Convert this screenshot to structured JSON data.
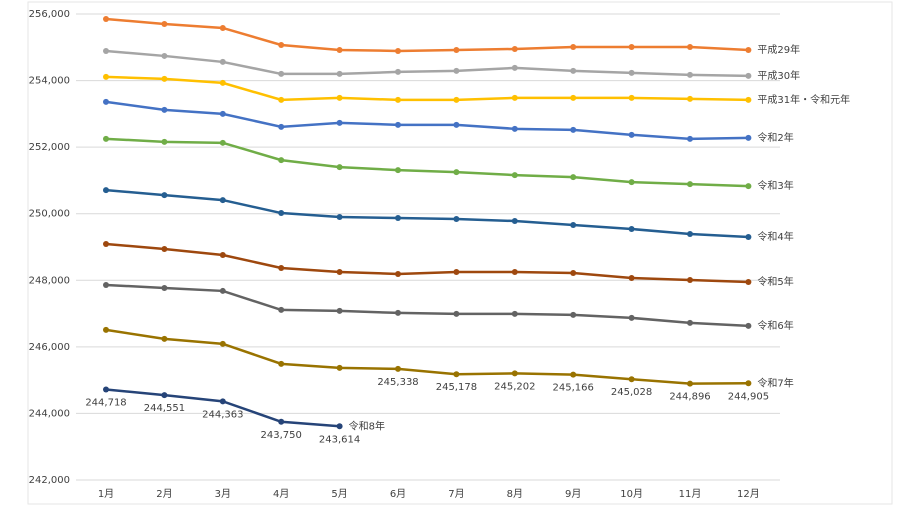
{
  "chart_data": {
    "type": "line",
    "categories": [
      "1月",
      "2月",
      "3月",
      "4月",
      "5月",
      "6月",
      "7月",
      "8月",
      "9月",
      "10月",
      "11月",
      "12月"
    ],
    "ylim": [
      242000,
      256000
    ],
    "yticks": [
      {
        "value": 242000,
        "label": "242,000"
      },
      {
        "value": 244000,
        "label": "244,000"
      },
      {
        "value": 246000,
        "label": "246,000"
      },
      {
        "value": 248000,
        "label": "248,000"
      },
      {
        "value": 250000,
        "label": "250,000"
      },
      {
        "value": 252000,
        "label": "252,000"
      },
      {
        "value": 254000,
        "label": "254,000"
      },
      {
        "value": 256000,
        "label": "256,000"
      }
    ],
    "grid": true,
    "series": [
      {
        "name": "平成29年",
        "color": "#ED7D31",
        "values": [
          255850,
          255700,
          255580,
          255070,
          254920,
          254890,
          254920,
          254950,
          255010,
          255010,
          255010,
          254920
        ]
      },
      {
        "name": "平成30年",
        "color": "#A5A5A5",
        "values": [
          254890,
          254740,
          254560,
          254200,
          254200,
          254260,
          254290,
          254380,
          254290,
          254230,
          254170,
          254140
        ]
      },
      {
        "name": "平成31年・令和元年",
        "color": "#FFC000",
        "values": [
          254110,
          254050,
          253930,
          253420,
          253480,
          253420,
          253420,
          253480,
          253480,
          253480,
          253450,
          253420
        ]
      },
      {
        "name": "令和2年",
        "color": "#4472C4",
        "values": [
          253360,
          253120,
          253000,
          252610,
          252730,
          252670,
          252670,
          252550,
          252520,
          252370,
          252250,
          252280
        ]
      },
      {
        "name": "令和3年",
        "color": "#70AD47",
        "values": [
          252250,
          252160,
          252130,
          251610,
          251400,
          251310,
          251250,
          251160,
          251100,
          250950,
          250890,
          250830
        ]
      },
      {
        "name": "令和4年",
        "color": "#255E91",
        "values": [
          250710,
          250560,
          250410,
          250020,
          249900,
          249870,
          249840,
          249780,
          249660,
          249540,
          249390,
          249300
        ]
      },
      {
        "name": "令和5年",
        "color": "#9E480E",
        "values": [
          249090,
          248940,
          248760,
          248370,
          248250,
          248190,
          248250,
          248250,
          248220,
          248070,
          248010,
          247950
        ]
      },
      {
        "name": "令和6年",
        "color": "#636363",
        "values": [
          247860,
          247770,
          247680,
          247110,
          247080,
          247020,
          246990,
          246990,
          246960,
          246870,
          246720,
          246630
        ]
      },
      {
        "name": "令和7年",
        "color": "#997300",
        "values": [
          246510,
          246240,
          246090,
          245490,
          245370,
          245338,
          245178,
          245202,
          245166,
          245028,
          244896,
          244905
        ],
        "value_labels": [
          null,
          null,
          null,
          null,
          null,
          "245,338",
          "245,178",
          "245,202",
          "245,166",
          "245,028",
          "244,896",
          "244,905"
        ]
      },
      {
        "name": "令和8年",
        "color": "#264478",
        "values": [
          244718,
          244551,
          244363,
          243750,
          243614,
          null,
          null,
          null,
          null,
          null,
          null,
          null
        ],
        "value_labels": [
          "244,718",
          "244,551",
          "244,363",
          "243,750",
          "243,614",
          null,
          null,
          null,
          null,
          null,
          null,
          null
        ]
      }
    ]
  }
}
